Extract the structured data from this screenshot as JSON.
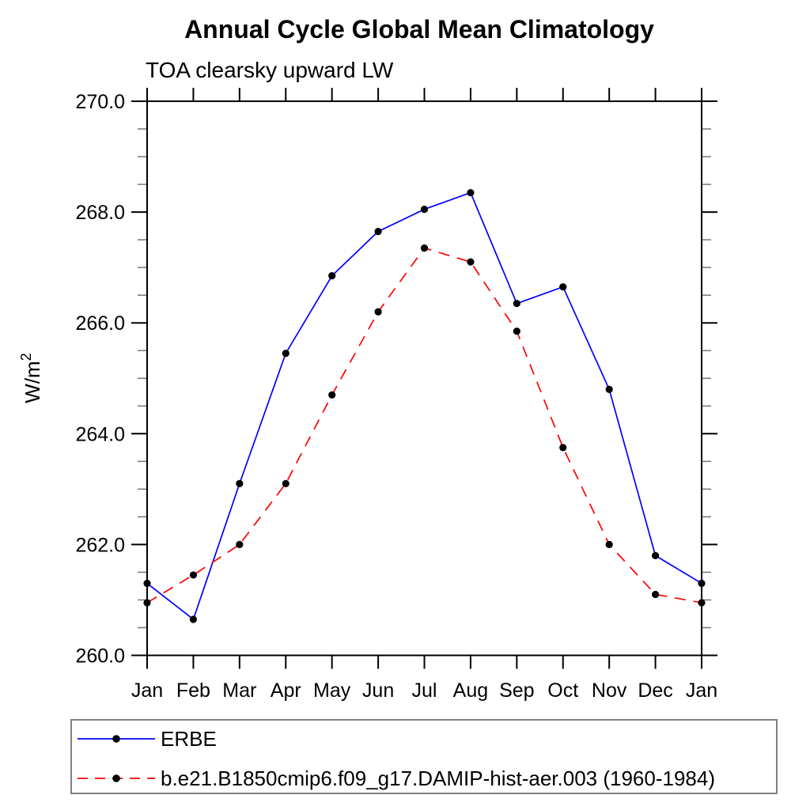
{
  "chart_data": {
    "type": "line",
    "title": "Annual Cycle Global Mean Climatology",
    "subtitle": "TOA clearsky upward LW",
    "ylabel_base": "W/m",
    "ylabel_exponent": "2",
    "xlabel": "",
    "categories": [
      "Jan",
      "Feb",
      "Mar",
      "Apr",
      "May",
      "Jun",
      "Jul",
      "Aug",
      "Sep",
      "Oct",
      "Nov",
      "Dec",
      "Jan"
    ],
    "ylim": [
      260.0,
      270.0
    ],
    "ytick_values": [
      260.0,
      262.0,
      264.0,
      266.0,
      268.0,
      270.0
    ],
    "ytick_labels": [
      "260.0",
      "262.0",
      "264.0",
      "266.0",
      "268.0",
      "270.0"
    ],
    "ytick_minor_step": 0.5,
    "grid": false,
    "legend_position": "bottom-left-box",
    "series": [
      {
        "name": "ERBE",
        "color": "#0000ff",
        "line_style": "solid",
        "marker": "circle",
        "marker_color": "#000000",
        "values": [
          261.3,
          260.65,
          263.1,
          265.45,
          266.85,
          267.65,
          268.05,
          268.35,
          266.35,
          266.65,
          264.8,
          261.8,
          261.3
        ]
      },
      {
        "name": "b.e21.B1850cmip6.f09_g17.DAMIP-hist-aer.003 (1960-1984)",
        "color": "#ff0000",
        "line_style": "dashed",
        "marker": "circle",
        "marker_color": "#000000",
        "values": [
          260.95,
          261.45,
          262.0,
          263.1,
          264.7,
          266.2,
          267.35,
          267.1,
          265.85,
          263.75,
          262.0,
          261.1,
          260.95
        ]
      }
    ]
  }
}
